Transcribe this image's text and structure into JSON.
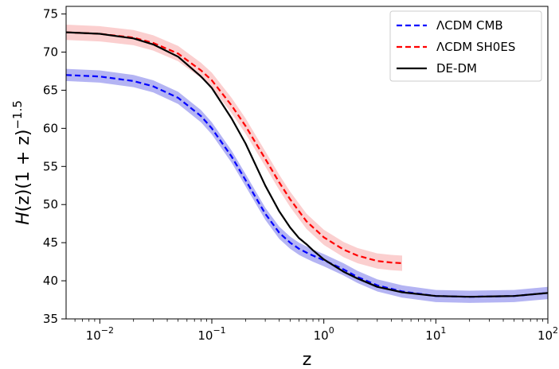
{
  "chart_data": {
    "type": "line",
    "xlabel": "z",
    "ylabel_parts": {
      "H": "H",
      "z1": "(z)(1 + z)",
      "exp": "−1.5"
    },
    "xscale": "log",
    "xlim": [
      0.005,
      100
    ],
    "ylim": [
      35,
      76
    ],
    "x_ticks": [
      {
        "value": 0.01,
        "base": "10",
        "exp": "−2"
      },
      {
        "value": 0.1,
        "base": "10",
        "exp": "−1"
      },
      {
        "value": 1,
        "base": "10",
        "exp": "0"
      },
      {
        "value": 10,
        "base": "10",
        "exp": "1"
      },
      {
        "value": 100,
        "base": "10",
        "exp": "2"
      }
    ],
    "y_ticks": [
      35,
      40,
      45,
      50,
      55,
      60,
      65,
      70,
      75
    ],
    "legend_position": "top-right",
    "series": [
      {
        "name": "ΛCDM CMB",
        "color": "#0000ff",
        "dash": true,
        "band_color": "#6a6ae8",
        "x": [
          0.005,
          0.01,
          0.02,
          0.03,
          0.05,
          0.08,
          0.1,
          0.15,
          0.2,
          0.3,
          0.4,
          0.5,
          0.6,
          0.7,
          0.8,
          1,
          1.5,
          2,
          3,
          5,
          10,
          20,
          50,
          100
        ],
        "y": [
          67.0,
          66.8,
          66.2,
          65.5,
          64.0,
          61.6,
          60.0,
          56.3,
          53.2,
          48.8,
          46.3,
          45.0,
          44.2,
          43.7,
          43.3,
          42.7,
          41.5,
          40.5,
          39.4,
          38.6,
          38.0,
          37.9,
          38.0,
          38.4
        ],
        "band_halfwidth": 0.8
      },
      {
        "name": "ΛCDM SH0ES",
        "color": "#ff0000",
        "dash": true,
        "band_color": "#f8a0a0",
        "x": [
          0.005,
          0.01,
          0.02,
          0.03,
          0.05,
          0.08,
          0.1,
          0.15,
          0.2,
          0.3,
          0.4,
          0.5,
          0.7,
          1,
          1.5,
          2,
          3,
          4,
          5
        ],
        "y": [
          72.6,
          72.4,
          71.9,
          71.2,
          69.8,
          67.6,
          66.3,
          63.0,
          60.3,
          56.0,
          52.9,
          50.7,
          47.8,
          45.7,
          44.1,
          43.3,
          42.6,
          42.4,
          42.3
        ],
        "band_halfwidth": 1.0
      },
      {
        "name": "DE-DM",
        "color": "#000000",
        "dash": false,
        "x": [
          0.005,
          0.01,
          0.02,
          0.03,
          0.05,
          0.08,
          0.1,
          0.15,
          0.2,
          0.3,
          0.4,
          0.5,
          0.6,
          0.7,
          0.8,
          1,
          1.5,
          2,
          3,
          5,
          10,
          20,
          50,
          100
        ],
        "y": [
          72.6,
          72.4,
          71.8,
          71.0,
          69.4,
          66.8,
          65.3,
          61.3,
          58.0,
          52.5,
          49.1,
          47.0,
          45.6,
          44.8,
          44.0,
          42.8,
          41.2,
          40.3,
          39.2,
          38.5,
          38.0,
          37.9,
          38.0,
          38.4
        ]
      }
    ]
  }
}
